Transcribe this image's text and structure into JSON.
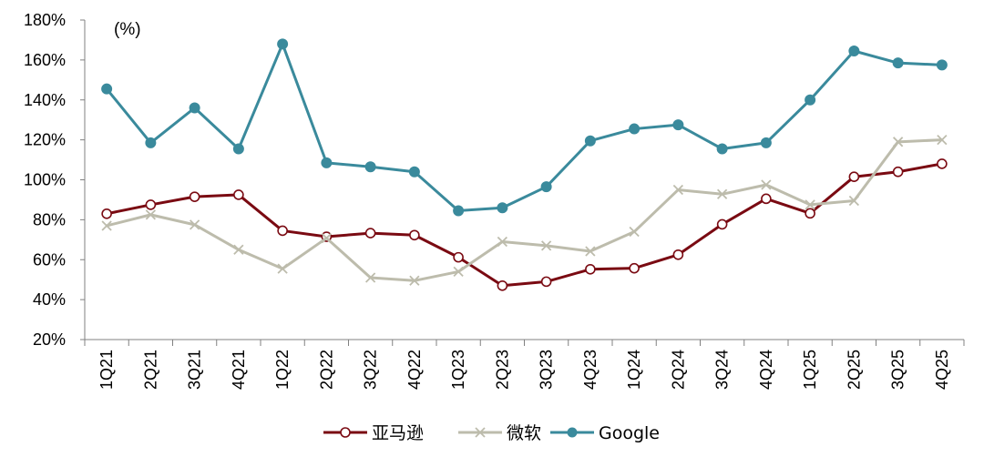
{
  "chart_data": {
    "type": "line",
    "categories": [
      "1Q21",
      "2Q21",
      "3Q21",
      "4Q21",
      "1Q22",
      "2Q22",
      "3Q22",
      "4Q22",
      "1Q23",
      "2Q23",
      "3Q23",
      "4Q23",
      "1Q24",
      "2Q24",
      "3Q24",
      "4Q24",
      "1Q25",
      "2Q25",
      "3Q25",
      "4Q25"
    ],
    "unit_label": "(%)",
    "ylim": [
      20,
      180
    ],
    "yticks": [
      20,
      40,
      60,
      80,
      100,
      120,
      140,
      160,
      180
    ],
    "ytick_labels": [
      "20%",
      "40%",
      "60%",
      "80%",
      "100%",
      "120%",
      "140%",
      "160%",
      "180%"
    ],
    "grid": false,
    "legend_position": "bottom",
    "series": [
      {
        "name": "亚马逊",
        "color": "#7a0a12",
        "marker": "hollow-circle",
        "values": [
          83,
          87.5,
          91.5,
          92.5,
          74.5,
          71.5,
          73.3,
          72.3,
          61.2,
          47,
          49,
          55.2,
          55.7,
          62.5,
          77.7,
          90.5,
          83.2,
          101.5,
          104,
          108
        ]
      },
      {
        "name": "微软",
        "color": "#bdbcac",
        "marker": "x",
        "values": [
          77,
          82.5,
          77.5,
          65,
          55.5,
          70.8,
          51,
          49.5,
          54,
          69,
          67,
          64.2,
          74,
          95,
          92.8,
          97.5,
          87.5,
          89.5,
          119,
          120
        ]
      },
      {
        "name": "Google",
        "color": "#3a8a9c",
        "marker": "filled-circle",
        "values": [
          145.5,
          118.5,
          136,
          115.5,
          168,
          108.5,
          106.5,
          104,
          84.5,
          86,
          96.5,
          119.5,
          125.5,
          127.5,
          115.5,
          118.5,
          140,
          164.5,
          158.5,
          157.5
        ]
      }
    ]
  }
}
